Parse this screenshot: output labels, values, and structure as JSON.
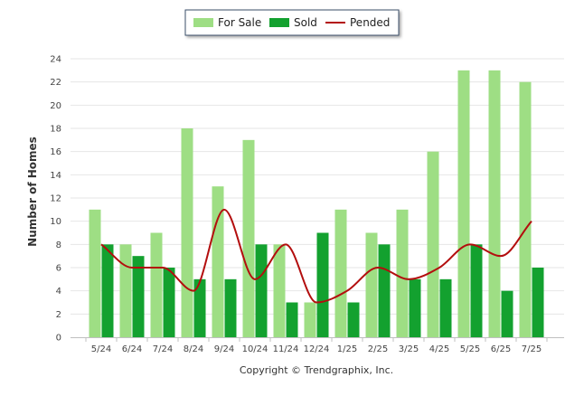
{
  "chart_data": {
    "type": "bar",
    "categories": [
      "5/24",
      "6/24",
      "7/24",
      "8/24",
      "9/24",
      "10/24",
      "11/24",
      "12/24",
      "1/25",
      "2/25",
      "3/25",
      "4/25",
      "5/25",
      "6/25",
      "7/25"
    ],
    "series": [
      {
        "name": "For Sale",
        "kind": "bar",
        "color": "#9ede84",
        "values": [
          11,
          8,
          9,
          18,
          13,
          17,
          8,
          3,
          11,
          9,
          11,
          16,
          23,
          23,
          22
        ]
      },
      {
        "name": "Sold",
        "kind": "bar",
        "color": "#13a12f",
        "values": [
          8,
          7,
          6,
          5,
          5,
          8,
          3,
          9,
          3,
          8,
          5,
          5,
          8,
          4,
          6
        ]
      },
      {
        "name": "Pended",
        "kind": "line",
        "color": "#b30e0e",
        "values": [
          8,
          6,
          6,
          4,
          11,
          5,
          8,
          3,
          4,
          6,
          5,
          6,
          8,
          7,
          10
        ]
      }
    ],
    "ylabel": "Number of Homes",
    "xlabel": "",
    "ylim": [
      0,
      24
    ],
    "yticks": [
      0,
      2,
      4,
      6,
      8,
      10,
      12,
      14,
      16,
      18,
      20,
      22,
      24
    ],
    "grid": true,
    "legend_position": "top-center"
  },
  "footer": "Copyright © Trendgraphix, Inc."
}
